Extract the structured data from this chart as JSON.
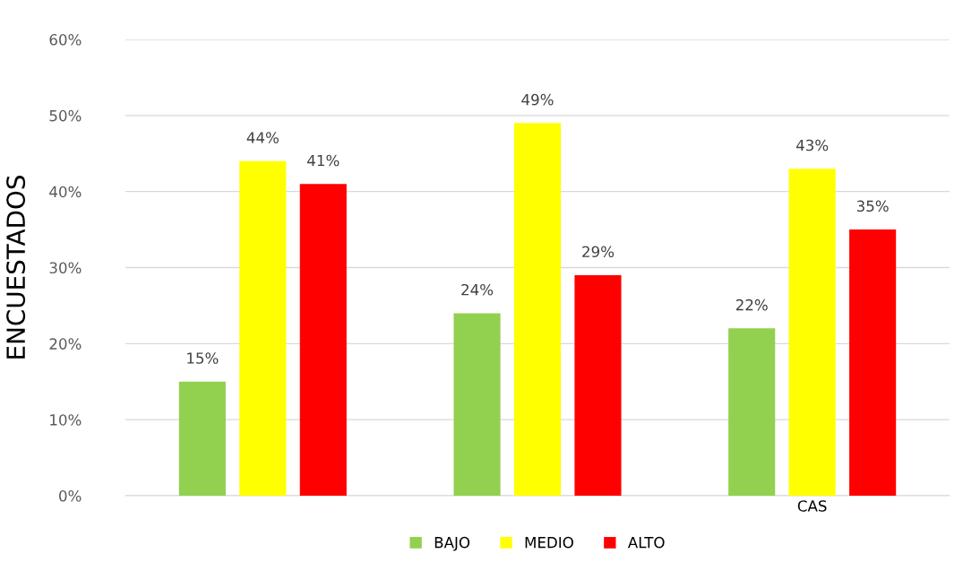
{
  "chart_data": {
    "type": "bar",
    "ylabel": "ENCUESTADOS",
    "categories": [
      null,
      null,
      "CAS"
    ],
    "series": [
      {
        "name": "BAJO",
        "color": "#92d050",
        "values": [
          15,
          24,
          22
        ],
        "value_labels": [
          "15%",
          "24%",
          "22%"
        ]
      },
      {
        "name": "MEDIO",
        "color": "#ffff00",
        "values": [
          44,
          49,
          43
        ],
        "value_labels": [
          "44%",
          "49%",
          "43%"
        ]
      },
      {
        "name": "ALTO",
        "color": "#ff0000",
        "values": [
          41,
          29,
          35
        ],
        "value_labels": [
          "41%",
          "29%",
          "35%"
        ]
      }
    ],
    "ylim": [
      0,
      60
    ],
    "yticks": [
      {
        "value": 0,
        "label": "0%"
      },
      {
        "value": 10,
        "label": "10%"
      },
      {
        "value": 20,
        "label": "20%"
      },
      {
        "value": 30,
        "label": "30%"
      },
      {
        "value": 40,
        "label": "40%"
      },
      {
        "value": 50,
        "label": "50%"
      },
      {
        "value": 60,
        "label": "60%"
      }
    ],
    "grid": "y",
    "legend": "bottom"
  }
}
